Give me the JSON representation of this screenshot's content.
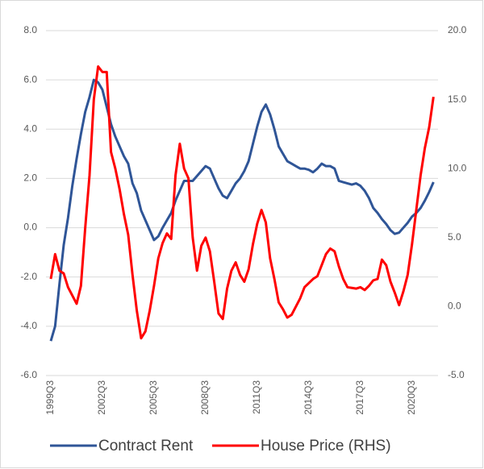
{
  "chart_data": {
    "type": "line",
    "categories": [
      "1999Q3",
      null,
      null,
      null,
      null,
      null,
      null,
      null,
      null,
      null,
      null,
      null,
      "2002Q3",
      null,
      null,
      null,
      null,
      null,
      null,
      null,
      null,
      null,
      null,
      null,
      "2005Q3",
      null,
      null,
      null,
      null,
      null,
      null,
      null,
      null,
      null,
      null,
      null,
      "2008Q3",
      null,
      null,
      null,
      null,
      null,
      null,
      null,
      null,
      null,
      null,
      null,
      "2011Q3",
      null,
      null,
      null,
      null,
      null,
      null,
      null,
      null,
      null,
      null,
      null,
      "2014Q3",
      null,
      null,
      null,
      null,
      null,
      null,
      null,
      null,
      null,
      null,
      null,
      "2017Q3",
      null,
      null,
      null,
      null,
      null,
      null,
      null,
      null,
      null,
      null,
      null,
      "2020Q3",
      null,
      null,
      null,
      null,
      null
    ],
    "series": [
      {
        "name": "Contract Rent",
        "color": "#2f5597",
        "values": [
          -4.6,
          -4.0,
          -2.3,
          -0.7,
          0.4,
          1.7,
          2.8,
          3.8,
          4.7,
          5.3,
          6.0,
          5.9,
          5.6,
          4.9,
          4.2,
          3.7,
          3.3,
          2.9,
          2.6,
          1.8,
          1.4,
          0.7,
          0.3,
          -0.1,
          -0.5,
          -0.35,
          0.0,
          0.3,
          0.6,
          1.1,
          1.5,
          1.9,
          1.9,
          1.9,
          2.1,
          2.3,
          2.5,
          2.4,
          2.0,
          1.6,
          1.3,
          1.2,
          1.5,
          1.8,
          2.0,
          2.3,
          2.7,
          3.4,
          4.1,
          4.7,
          5.0,
          4.6,
          4.0,
          3.3,
          3.0,
          2.7,
          2.6,
          2.5,
          2.4,
          2.4,
          2.35,
          2.25,
          2.4,
          2.6,
          2.5,
          2.5,
          2.4,
          1.9,
          1.85,
          1.8,
          1.75,
          1.8,
          1.7,
          1.5,
          1.2,
          0.8,
          0.6,
          0.35,
          0.15,
          -0.1,
          -0.25,
          -0.2,
          0.0,
          0.2,
          0.45,
          0.6,
          0.8,
          1.1,
          1.45,
          1.85
        ]
      },
      {
        "name": "House Price (RHS)",
        "color": "#ff0000",
        "axis": "y2",
        "values": [
          2.0,
          3.8,
          2.6,
          2.4,
          1.4,
          0.8,
          0.2,
          1.5,
          5.7,
          9.5,
          15.0,
          17.4,
          17.0,
          17.0,
          11.2,
          10.0,
          8.5,
          6.7,
          5.2,
          2.3,
          -0.3,
          -2.3,
          -1.8,
          -0.3,
          1.5,
          3.5,
          4.6,
          5.3,
          4.9,
          9.5,
          11.8,
          10.0,
          9.3,
          5.0,
          2.6,
          4.4,
          5.0,
          4.0,
          1.8,
          -0.5,
          -0.9,
          1.3,
          2.6,
          3.2,
          2.3,
          1.8,
          2.7,
          4.5,
          6.0,
          7.0,
          6.1,
          3.5,
          2.0,
          0.3,
          -0.2,
          -0.8,
          -0.6,
          0.0,
          0.6,
          1.4,
          1.7,
          2.0,
          2.2,
          3.0,
          3.8,
          4.2,
          4.0,
          2.9,
          2.0,
          1.4,
          1.35,
          1.3,
          1.4,
          1.2,
          1.5,
          1.9,
          2.0,
          3.4,
          3.0,
          1.8,
          1.0,
          0.1,
          1.1,
          2.3,
          4.5,
          7.0,
          9.5,
          11.5,
          13.0,
          15.2
        ]
      }
    ],
    "ylim": [
      -6,
      8
    ],
    "yticks": [
      {
        "value": -6,
        "label": "-6.0"
      },
      {
        "value": -4,
        "label": "-4.0"
      },
      {
        "value": -2,
        "label": "-2.0"
      },
      {
        "value": 0,
        "label": "0.0"
      },
      {
        "value": 2,
        "label": "2.0"
      },
      {
        "value": 4,
        "label": "4.0"
      },
      {
        "value": 6,
        "label": "6.0"
      },
      {
        "value": 8,
        "label": "8.0"
      }
    ],
    "y2lim": [
      -5,
      20
    ],
    "y2ticks": [
      {
        "value": -5,
        "label": "-5.0"
      },
      {
        "value": 0,
        "label": "0.0"
      },
      {
        "value": 5,
        "label": "5.0"
      },
      {
        "value": 10,
        "label": "10.0"
      },
      {
        "value": 15,
        "label": "15.0"
      },
      {
        "value": 20,
        "label": "20.0"
      }
    ],
    "grid": true,
    "legend": "bottom"
  }
}
